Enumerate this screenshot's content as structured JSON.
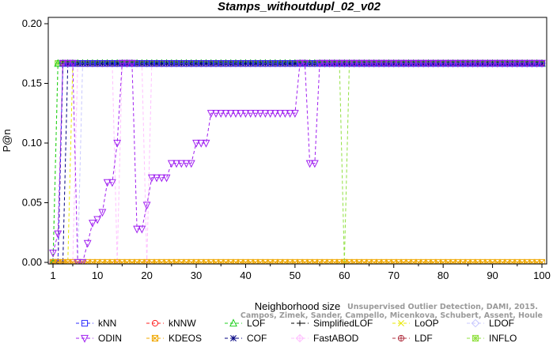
{
  "chart_data": {
    "type": "line",
    "title": "Stamps_withoutdupl_02_v02",
    "xlabel": "Neighborhood size",
    "ylabel": "P@n",
    "xlim": [
      0,
      100
    ],
    "ylim": [
      0,
      0.2
    ],
    "xticks": [
      1,
      10,
      20,
      30,
      40,
      50,
      60,
      70,
      80,
      90,
      100
    ],
    "yticks": [
      0.0,
      0.05,
      0.1,
      0.15,
      0.2
    ],
    "xtick_labels": [
      "1",
      "10",
      "20",
      "30",
      "40",
      "50",
      "60",
      "70",
      "80",
      "90",
      "100"
    ],
    "ytick_labels": [
      "0.00",
      "0.05",
      "0.10",
      "0.15",
      "0.20"
    ],
    "grid": false,
    "legend_position": "bottom",
    "series": [
      {
        "name": "kNN",
        "color": "#2c2cff",
        "marker": "square",
        "dash": "4,3",
        "ramp": 3,
        "dips": []
      },
      {
        "name": "kNNW",
        "color": "#ff2020",
        "marker": "circle",
        "dash": "4,3",
        "ramp": 3,
        "dips": []
      },
      {
        "name": "LOF",
        "color": "#20d020",
        "marker": "triangle",
        "dash": "4,3",
        "ramp": 2,
        "dips": []
      },
      {
        "name": "SimplifiedLOF",
        "color": "#000000",
        "marker": "plus",
        "dash": "4,3",
        "ramp": 3,
        "dips": []
      },
      {
        "name": "LoOP",
        "color": "#e8e800",
        "marker": "x",
        "dash": "4,3",
        "ramp": 5,
        "dips": []
      },
      {
        "name": "LDOF",
        "color": "#c8c8ff",
        "marker": "diamond",
        "dash": "4,3",
        "ramp": 7,
        "dips": []
      },
      {
        "name": "ODIN",
        "color": "#a020f0",
        "marker": "triangle-down",
        "dash": "4,3",
        "ramp": null,
        "dips": []
      },
      {
        "name": "KDEOS",
        "color": "#f0a800",
        "marker": "square-x",
        "dash": "4,3",
        "ramp": null,
        "dips": []
      },
      {
        "name": "COF",
        "color": "#000080",
        "marker": "asterisk",
        "dash": "4,3",
        "ramp": 4,
        "dips": []
      },
      {
        "name": "FastABOD",
        "color": "#ffc0ff",
        "marker": "diamond-plus",
        "dash": "4,3",
        "ramp": 6,
        "dips": [
          14,
          20
        ]
      },
      {
        "name": "LDF",
        "color": "#b03040",
        "marker": "circle-plus",
        "dash": "4,3",
        "ramp": 3,
        "dips": []
      },
      {
        "name": "INFLO",
        "color": "#90e040",
        "marker": "square-star",
        "dash": "4,3",
        "ramp": 2,
        "dips": [
          60
        ]
      }
    ],
    "series_values": {
      "kNN_value": 0.1667,
      "ODIN": {
        "x": [
          1,
          2,
          3,
          4,
          5,
          6,
          7,
          8,
          9,
          10,
          11,
          12,
          13,
          14,
          15,
          16,
          17,
          18,
          19,
          20,
          21,
          22,
          23,
          24,
          25,
          26,
          27,
          28,
          29,
          30,
          31,
          32,
          33,
          34,
          35,
          36,
          37,
          38,
          39,
          40,
          41,
          42,
          43,
          44,
          45,
          46,
          47,
          48,
          49,
          50,
          51,
          52,
          53,
          54,
          55,
          56,
          57,
          58,
          59,
          60,
          61,
          62,
          63,
          64,
          65,
          66,
          67,
          68,
          69,
          70,
          71,
          72,
          73,
          74,
          75,
          76,
          77,
          78,
          79,
          80,
          81,
          82,
          83,
          84,
          85,
          86,
          87,
          88,
          89,
          90,
          91,
          92,
          93,
          94,
          95,
          96,
          97,
          98,
          99,
          100
        ],
        "y": [
          0.008,
          0.024,
          0.167,
          0.167,
          0.167,
          0.0,
          0.0,
          0.016,
          0.033,
          0.036,
          0.042,
          0.067,
          0.067,
          0.1,
          0.167,
          0.167,
          0.167,
          0.028,
          0.028,
          0.048,
          0.071,
          0.071,
          0.071,
          0.071,
          0.083,
          0.083,
          0.083,
          0.083,
          0.083,
          0.1,
          0.1,
          0.1,
          0.125,
          0.125,
          0.125,
          0.125,
          0.125,
          0.125,
          0.125,
          0.125,
          0.125,
          0.125,
          0.125,
          0.125,
          0.125,
          0.125,
          0.125,
          0.125,
          0.125,
          0.125,
          0.167,
          0.167,
          0.083,
          0.083,
          0.167,
          0.167,
          0.167,
          0.167,
          0.167,
          0.167,
          0.167,
          0.167,
          0.167,
          0.167,
          0.167,
          0.167,
          0.167,
          0.167,
          0.167,
          0.167,
          0.167,
          0.167,
          0.167,
          0.167,
          0.167,
          0.167,
          0.167,
          0.167,
          0.167,
          0.167,
          0.167,
          0.167,
          0.167,
          0.167,
          0.167,
          0.167,
          0.167,
          0.167,
          0.167,
          0.167,
          0.167,
          0.167,
          0.167,
          0.167,
          0.167,
          0.167,
          0.167,
          0.167,
          0.167,
          0.167
        ]
      },
      "KDEOS_value": 0.0
    },
    "watermark": [
      "Campos, Zimek, Sander, Campello, Micenkova, Schubert, Assent, Houle",
      "Unsupervised Outlier Detection, DAMI, 2015."
    ]
  }
}
